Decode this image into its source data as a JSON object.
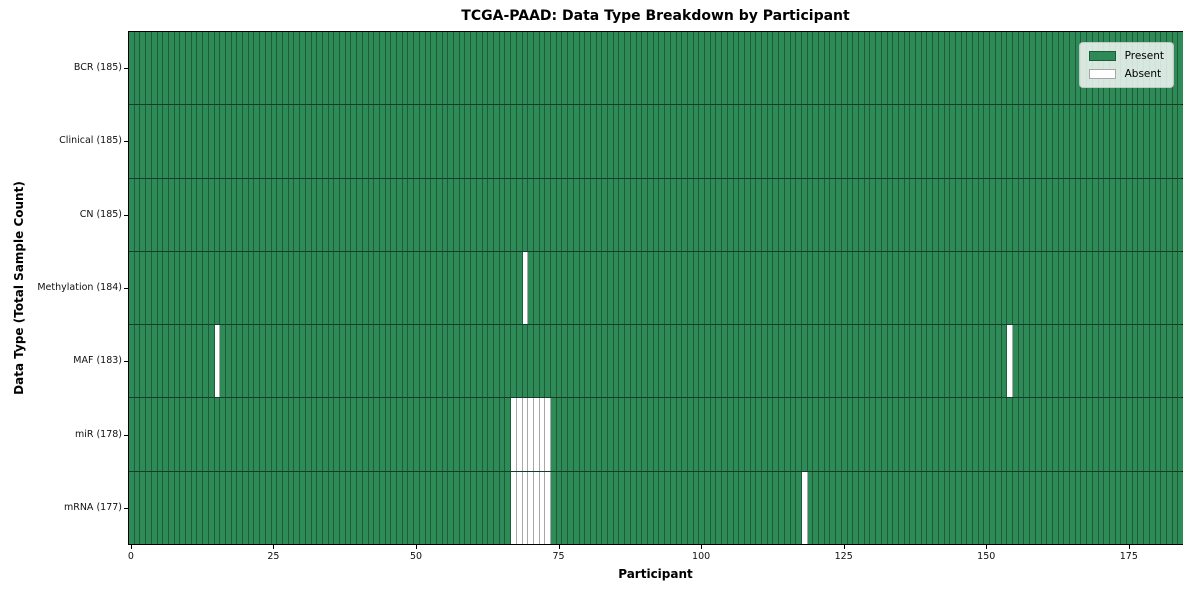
{
  "title": "TCGA-PAAD: Data Type Breakdown by Participant",
  "axes": {
    "x_label": "Participant",
    "y_label": "Data Type (Total Sample Count)"
  },
  "colors": {
    "present": "#2e8b57",
    "absent": "#ffffff",
    "spine": "#000000"
  },
  "chart_data": {
    "type": "heatmap",
    "title": "TCGA-PAAD: Data Type Breakdown by Participant",
    "xlabel": "Participant",
    "ylabel": "Data Type (Total Sample Count)",
    "n_participants": 185,
    "x_range": [
      -0.5,
      184.5
    ],
    "x_ticks": [
      0,
      25,
      50,
      75,
      100,
      125,
      150,
      175
    ],
    "legend_position": "upper right",
    "legend": [
      {
        "label": "Present",
        "color": "#2e8b57"
      },
      {
        "label": "Absent",
        "color": "#ffffff"
      }
    ],
    "rows": [
      {
        "id": "bcr",
        "label": "BCR (185)",
        "data_type": "BCR",
        "total_samples": 185,
        "absent_participants": []
      },
      {
        "id": "clinical",
        "label": "Clinical (185)",
        "data_type": "Clinical",
        "total_samples": 185,
        "absent_participants": []
      },
      {
        "id": "cn",
        "label": "CN (185)",
        "data_type": "CN",
        "total_samples": 185,
        "absent_participants": []
      },
      {
        "id": "methylation",
        "label": "Methylation (184)",
        "data_type": "Methylation",
        "total_samples": 184,
        "absent_participants": [
          69
        ]
      },
      {
        "id": "maf",
        "label": "MAF (183)",
        "data_type": "MAF",
        "total_samples": 183,
        "absent_participants": [
          15,
          154
        ]
      },
      {
        "id": "mir",
        "label": "miR (178)",
        "data_type": "miR",
        "total_samples": 178,
        "absent_participants": [
          67,
          68,
          69,
          70,
          71,
          72,
          73
        ]
      },
      {
        "id": "mrna",
        "label": "mRNA (177)",
        "data_type": "mRNA",
        "total_samples": 177,
        "absent_participants": [
          67,
          68,
          69,
          70,
          71,
          72,
          73,
          118
        ]
      }
    ]
  }
}
